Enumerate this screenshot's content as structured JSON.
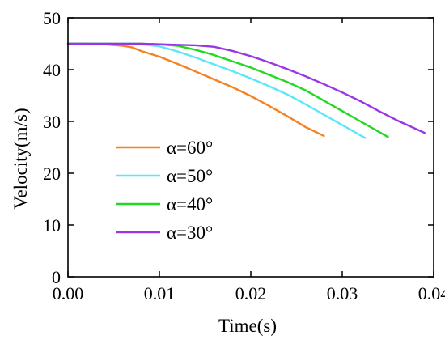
{
  "chart_data": {
    "type": "line",
    "title": "",
    "xlabel": "Time(s)",
    "ylabel": "Velocity(m/s)",
    "xlim": [
      0,
      0.04
    ],
    "ylim": [
      0,
      50
    ],
    "x_ticks": [
      0,
      0.01,
      0.02,
      0.03,
      0.04
    ],
    "x_tick_labels": [
      "0.00",
      "0.01",
      "0.02",
      "0.03",
      "0.04"
    ],
    "y_ticks": [
      0,
      10,
      20,
      30,
      40,
      50
    ],
    "y_tick_labels": [
      "0",
      "10",
      "20",
      "30",
      "40",
      "50"
    ],
    "grid": false,
    "legend_position": "lower-left",
    "series": [
      {
        "name": "α=60°",
        "color": "#F5821F",
        "x": [
          0,
          0.002,
          0.004,
          0.006,
          0.007,
          0.008,
          0.01,
          0.012,
          0.014,
          0.016,
          0.018,
          0.02,
          0.022,
          0.024,
          0.026,
          0.028
        ],
        "y": [
          45.0,
          45.0,
          44.9,
          44.6,
          44.3,
          43.6,
          42.5,
          41.1,
          39.6,
          38.1,
          36.6,
          34.9,
          33.0,
          31.0,
          28.9,
          27.2
        ]
      },
      {
        "name": "α=50°",
        "color": "#5CE6FA",
        "x": [
          0,
          0.004,
          0.008,
          0.01,
          0.012,
          0.014,
          0.016,
          0.018,
          0.02,
          0.022,
          0.024,
          0.026,
          0.028,
          0.03,
          0.0325
        ],
        "y": [
          45.0,
          45.0,
          44.9,
          44.5,
          43.5,
          42.3,
          41.0,
          39.7,
          38.3,
          36.8,
          35.2,
          33.3,
          31.3,
          29.3,
          26.8
        ]
      },
      {
        "name": "α=40°",
        "color": "#22D822",
        "x": [
          0,
          0.004,
          0.008,
          0.01,
          0.012,
          0.014,
          0.016,
          0.018,
          0.02,
          0.022,
          0.024,
          0.026,
          0.028,
          0.03,
          0.032,
          0.035
        ],
        "y": [
          45.0,
          45.0,
          45.0,
          44.9,
          44.6,
          43.8,
          42.8,
          41.6,
          40.4,
          39.0,
          37.6,
          36.0,
          34.0,
          32.0,
          30.0,
          27.0
        ]
      },
      {
        "name": "α=30°",
        "color": "#9A35E6",
        "x": [
          0,
          0.004,
          0.008,
          0.012,
          0.014,
          0.016,
          0.018,
          0.02,
          0.022,
          0.024,
          0.026,
          0.028,
          0.03,
          0.032,
          0.034,
          0.036,
          0.039
        ],
        "y": [
          45.0,
          45.0,
          45.0,
          44.8,
          44.7,
          44.4,
          43.6,
          42.6,
          41.4,
          40.1,
          38.7,
          37.2,
          35.6,
          33.9,
          32.0,
          30.2,
          27.8
        ]
      }
    ]
  }
}
